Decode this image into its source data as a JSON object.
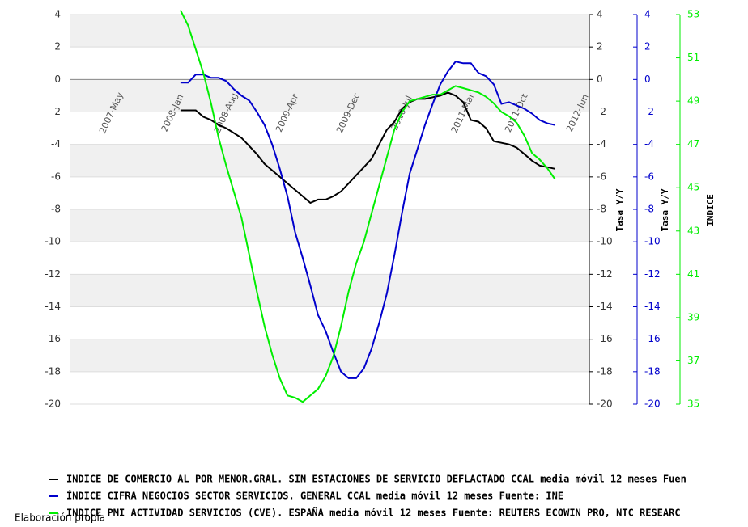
{
  "chart_data": {
    "type": "line",
    "categories": [
      null,
      null,
      null,
      null,
      null,
      "2007-May",
      null,
      null,
      null,
      null,
      null,
      null,
      null,
      "2008-Jan",
      null,
      null,
      null,
      null,
      null,
      null,
      "2008-Aug",
      null,
      null,
      null,
      null,
      null,
      null,
      null,
      "2009-Apr",
      null,
      null,
      null,
      null,
      null,
      null,
      null,
      "2009-Dec",
      null,
      null,
      null,
      null,
      null,
      null,
      "2010-Jul",
      null,
      null,
      null,
      null,
      null,
      null,
      null,
      "2011-Mar",
      null,
      null,
      null,
      null,
      null,
      null,
      "2011-Oct",
      null,
      null,
      null,
      null,
      null,
      null,
      null,
      "2012-Jun",
      null
    ],
    "ylim": [
      -20,
      4
    ],
    "yticks": [
      -20,
      -18,
      -16,
      -14,
      -12,
      -10,
      -8,
      -6,
      -4,
      -2,
      0,
      2,
      4
    ],
    "ylabel": "Tasa Y/Y",
    "y2lim": [
      -20,
      4
    ],
    "y2ticks": [
      -20,
      -18,
      -16,
      -14,
      -12,
      -10,
      -8,
      -6,
      -4,
      -2,
      0,
      2,
      4
    ],
    "y2label": "Tasa Y/Y",
    "y3lim": [
      35,
      53
    ],
    "y3ticks": [
      35,
      37,
      39,
      41,
      43,
      45,
      47,
      49,
      51,
      53
    ],
    "y3label": "INDICE",
    "grid": true,
    "series": [
      {
        "name": "INDICE DE COMERCIO AL POR MENOR.GRAL. SIN ESTACIONES DE SERVICIO DEFLACTADO CCAL media móvil 12 meses  Fuen",
        "color": "#000000",
        "axis": "y",
        "values": [
          null,
          null,
          null,
          null,
          null,
          null,
          null,
          null,
          null,
          null,
          null,
          null,
          null,
          null,
          -1.9,
          -1.9,
          -1.9,
          -2.3,
          -2.5,
          -2.8,
          -3.0,
          -3.3,
          -3.6,
          -4.1,
          -4.6,
          -5.2,
          -5.6,
          -6.0,
          -6.4,
          -6.8,
          -7.2,
          -7.6,
          -7.4,
          -7.4,
          -7.2,
          -6.9,
          -6.4,
          -5.9,
          -5.4,
          -4.9,
          -4.0,
          -3.1,
          -2.6,
          -1.8,
          -1.4,
          -1.2,
          -1.2,
          -1.1,
          -1.0,
          -0.8,
          -1.0,
          -1.4,
          -2.5,
          -2.6,
          -3.0,
          -3.8,
          -3.9,
          -4.0,
          -4.2,
          -4.6,
          -5.0,
          -5.3,
          -5.4,
          -5.5,
          null,
          null,
          null,
          null
        ]
      },
      {
        "name": "ÍNDICE CIFRA NEGOCIOS SECTOR SERVICIOS. GENERAL CCAL media móvil 12 meses  Fuente: INE",
        "color": "#0000cc",
        "axis": "y2",
        "values": [
          null,
          null,
          null,
          null,
          null,
          null,
          null,
          null,
          null,
          null,
          null,
          null,
          null,
          null,
          -0.2,
          -0.2,
          0.3,
          0.3,
          0.1,
          0.1,
          -0.1,
          -0.6,
          -1.0,
          -1.3,
          -2.0,
          -2.8,
          -4.0,
          -5.5,
          -7.2,
          -9.4,
          -11.0,
          -12.7,
          -14.5,
          -15.5,
          -16.8,
          -18.0,
          -18.4,
          -18.4,
          -17.8,
          -16.6,
          -15.0,
          -13.2,
          -10.8,
          -8.2,
          -5.8,
          -4.3,
          -2.8,
          -1.5,
          -0.3,
          0.5,
          1.1,
          1.0,
          1.0,
          0.4,
          0.2,
          -0.3,
          -1.5,
          -1.4,
          -1.6,
          -1.8,
          -2.1,
          -2.5,
          -2.7,
          -2.8,
          null,
          null,
          null,
          null
        ]
      },
      {
        "name": "INDICE PMI ACTIVIDAD SERVICIOS  (CVE). ESPAÑA media móvil 12 meses  Fuente: REUTERS ECOWIN PRO, NTC RESEARC",
        "color": "#00ee00",
        "axis": "y3",
        "values": [
          null,
          null,
          null,
          null,
          null,
          null,
          null,
          null,
          null,
          null,
          null,
          null,
          null,
          null,
          53.2,
          52.5,
          51.4,
          50.3,
          48.9,
          47.3,
          46.0,
          44.8,
          43.6,
          41.9,
          40.2,
          38.6,
          37.3,
          36.2,
          35.4,
          35.3,
          35.1,
          35.4,
          35.7,
          36.3,
          37.2,
          38.6,
          40.2,
          41.5,
          42.5,
          43.8,
          45.1,
          46.4,
          47.7,
          48.5,
          49.0,
          49.1,
          49.2,
          49.3,
          49.3,
          49.5,
          49.7,
          49.6,
          49.5,
          49.4,
          49.2,
          48.9,
          48.5,
          48.3,
          48.0,
          47.4,
          46.6,
          46.3,
          45.9,
          45.4,
          null,
          null,
          null,
          null
        ]
      }
    ]
  },
  "footer": "Elaboración propia"
}
